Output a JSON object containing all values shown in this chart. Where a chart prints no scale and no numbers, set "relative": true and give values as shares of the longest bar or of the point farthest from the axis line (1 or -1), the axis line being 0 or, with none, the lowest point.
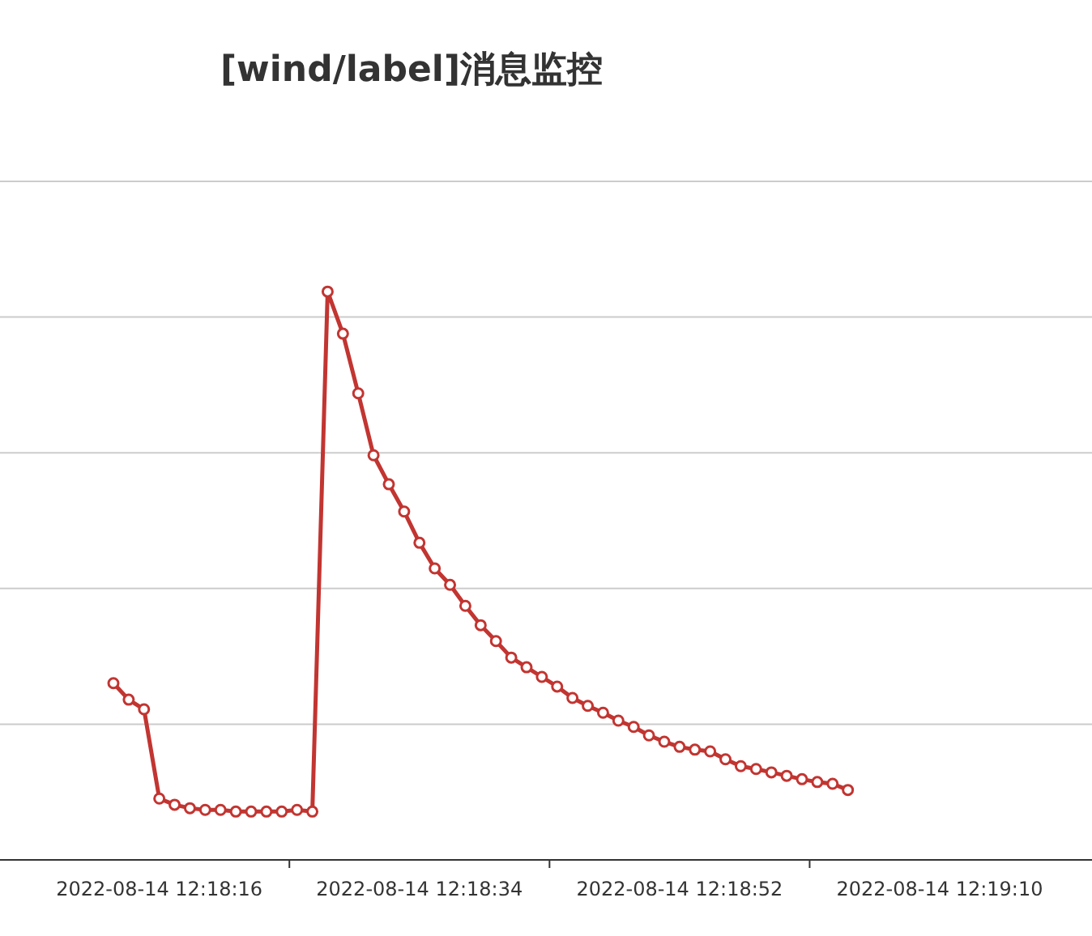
{
  "chart_data": {
    "type": "line",
    "title": "[wind/label]消息监控",
    "categories": [
      null,
      null,
      null,
      "2022-08-14 12:18:16",
      null,
      null,
      null,
      null,
      null,
      null,
      null,
      null,
      null,
      null,
      null,
      null,
      null,
      null,
      null,
      null,
      "2022-08-14 12:18:34",
      null,
      null,
      null,
      null,
      null,
      null,
      null,
      null,
      null,
      null,
      null,
      null,
      null,
      null,
      null,
      null,
      "2022-08-14 12:18:52",
      null,
      null,
      null,
      null,
      null,
      null,
      null,
      null,
      null,
      null,
      null,
      null,
      null,
      null,
      null,
      null,
      "2022-08-14 12:19:10"
    ],
    "values": [
      0.311,
      0.282,
      0.265,
      0.108,
      0.097,
      0.091,
      0.088,
      0.088,
      0.085,
      0.085,
      0.085,
      0.085,
      0.088,
      0.085,
      1,
      0.926,
      0.821,
      0.712,
      0.661,
      0.613,
      0.558,
      0.513,
      0.484,
      0.447,
      0.413,
      0.385,
      0.356,
      0.339,
      0.322,
      0.305,
      0.285,
      0.271,
      0.259,
      0.245,
      0.234,
      0.219,
      0.208,
      0.199,
      0.194,
      0.191,
      0.177,
      0.165,
      0.16,
      0.154,
      0.148,
      0.142,
      0.137,
      0.134,
      0.123,
      null,
      null,
      null,
      null,
      null,
      null
    ],
    "color": "#c23531",
    "relative": true,
    "grid": "y",
    "marker": "circle"
  }
}
